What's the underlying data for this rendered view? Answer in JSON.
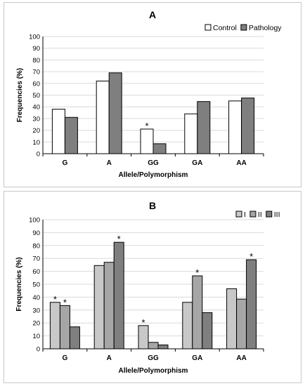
{
  "chart_data": [
    {
      "panel_label": "A",
      "type": "bar",
      "categories": [
        "G",
        "A",
        "GG",
        "GA",
        "AA"
      ],
      "series": [
        {
          "name": "Control",
          "color": "#ffffff",
          "values": [
            38,
            62,
            21,
            34,
            45
          ]
        },
        {
          "name": "Pathology",
          "color": "#7f7f7f",
          "values": [
            31,
            69,
            8.5,
            44.5,
            47.5
          ]
        }
      ],
      "significance_marks": [
        {
          "category": "GG",
          "series": "Control",
          "symbol": "*"
        }
      ],
      "xlabel": "Allele/Polymorphism",
      "ylabel": "Frequencies (%)",
      "ylim": [
        0,
        100
      ],
      "ytick_step": 10,
      "grid": true,
      "legend_position": "top-right"
    },
    {
      "panel_label": "B",
      "type": "bar",
      "categories": [
        "G",
        "A",
        "GG",
        "GA",
        "AA"
      ],
      "series": [
        {
          "name": "I",
          "color": "#c8c8c8",
          "values": [
            36,
            64.5,
            18,
            36,
            46.5
          ]
        },
        {
          "name": "II",
          "color": "#a6a6a6",
          "values": [
            33.5,
            67,
            5,
            56.5,
            38.5
          ]
        },
        {
          "name": "III",
          "color": "#7f7f7f",
          "values": [
            17,
            82.5,
            3,
            28,
            69
          ]
        }
      ],
      "significance_marks": [
        {
          "category": "G",
          "series": "I",
          "symbol": "*"
        },
        {
          "category": "G",
          "series": "II",
          "symbol": "*"
        },
        {
          "category": "A",
          "series": "III",
          "symbol": "*"
        },
        {
          "category": "GG",
          "series": "I",
          "symbol": "*"
        },
        {
          "category": "GA",
          "series": "II",
          "symbol": "*"
        },
        {
          "category": "AA",
          "series": "III",
          "symbol": "*"
        }
      ],
      "xlabel": "Allele/Polymorphism",
      "ylabel": "Frequencies (%)",
      "ylim": [
        0,
        100
      ],
      "ytick_step": 10,
      "grid": true,
      "legend_position": "top-right"
    }
  ]
}
